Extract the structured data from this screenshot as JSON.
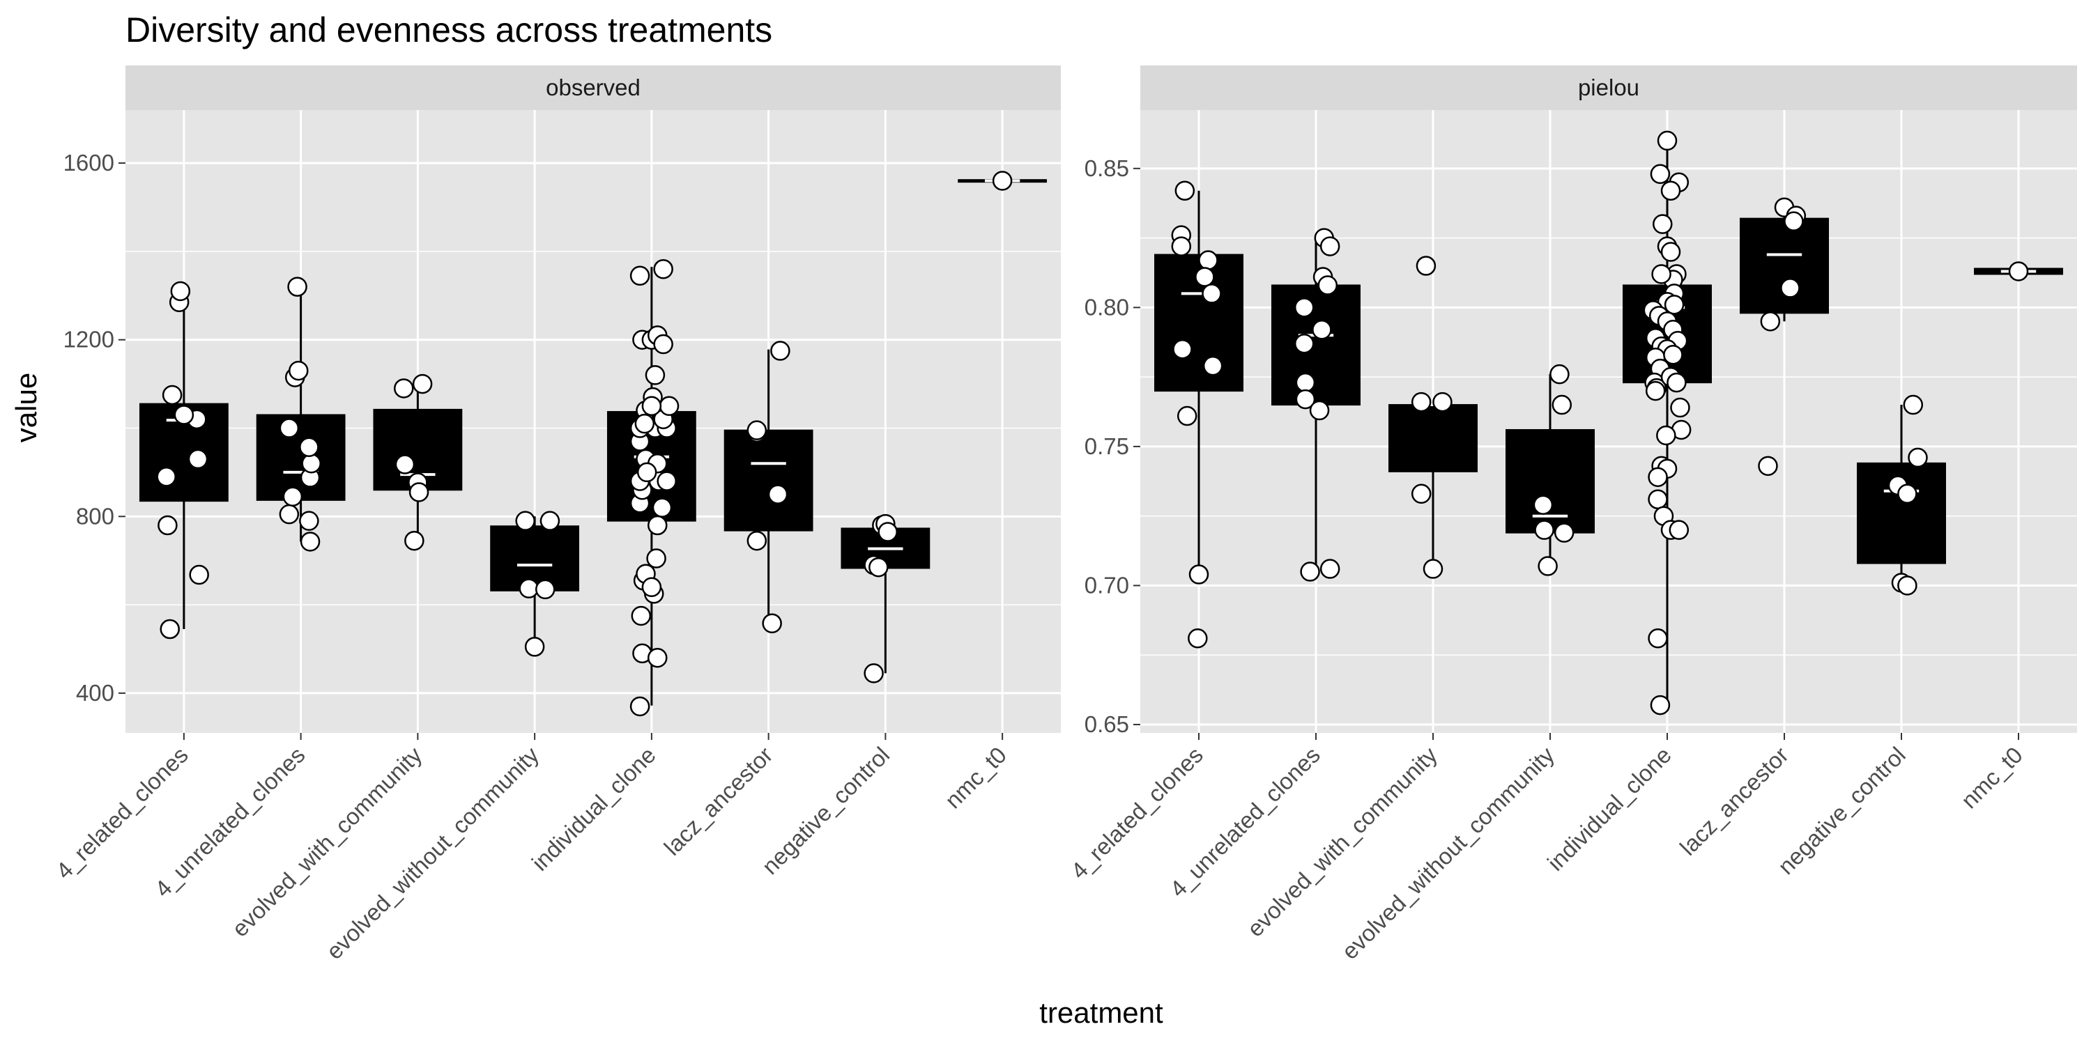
{
  "chart_data": {
    "type": "boxplot",
    "title": "Diversity and evenness across treatments",
    "xlabel": "treatment",
    "ylabel": "value",
    "categories": [
      "4_related_clones",
      "4_unrelated_clones",
      "evolved_with_community",
      "evolved_without_community",
      "individual_clone",
      "lacz_ancestor",
      "negative_control",
      "nmc_t0"
    ],
    "colors": {
      "panel_bg": "#e5e5e5",
      "strip_bg": "#d9d9d9",
      "grid": "#ffffff",
      "box_fill": "#000000",
      "median": "#ffffff",
      "point_fill": "#ffffff",
      "point_stroke": "#000000"
    },
    "grid": true,
    "legend": "none",
    "facets": [
      {
        "name": "observed",
        "ylim": [
          310,
          1720
        ],
        "yticks": [
          400,
          800,
          1200,
          1600
        ],
        "boxes": [
          {
            "q1": 835,
            "median": 1018,
            "q3": 1055,
            "whisker_low": 545,
            "whisker_high": 1285
          },
          {
            "q1": 837,
            "median": 900,
            "q3": 1030,
            "whisker_low": 743,
            "whisker_high": 1320
          },
          {
            "q1": 860,
            "median": 895,
            "q3": 1042,
            "whisker_low": 745,
            "whisker_high": 1100
          },
          {
            "q1": 632,
            "median": 690,
            "q3": 778,
            "whisker_low": 505,
            "whisker_high": 800
          },
          {
            "q1": 790,
            "median": 935,
            "q3": 1037,
            "whisker_low": 372,
            "whisker_high": 1365
          },
          {
            "q1": 768,
            "median": 920,
            "q3": 995,
            "whisker_low": 558,
            "whisker_high": 1178
          },
          {
            "q1": 683,
            "median": 727,
            "q3": 773,
            "whisker_low": 445,
            "whisker_high": 788
          },
          {
            "q1": 1558,
            "median": 1560,
            "q3": 1562,
            "whisker_low": 1558,
            "whisker_high": 1562
          }
        ],
        "points": [
          [
            [
              -0.12,
              545
            ],
            [
              -0.14,
              780
            ],
            [
              -0.15,
              890
            ],
            [
              0.12,
              930
            ],
            [
              0.11,
              1020
            ],
            [
              -0.1,
              1075
            ],
            [
              0.0,
              1030
            ],
            [
              -0.04,
              1285
            ],
            [
              -0.03,
              1310
            ],
            [
              0.13,
              668
            ]
          ],
          [
            [
              -0.1,
              805
            ],
            [
              -0.07,
              845
            ],
            [
              0.08,
              888
            ],
            [
              0.09,
              920
            ],
            [
              0.07,
              957
            ],
            [
              -0.1,
              1000
            ],
            [
              0.07,
              790
            ],
            [
              0.08,
              743
            ],
            [
              -0.05,
              1115
            ],
            [
              -0.02,
              1130
            ],
            [
              -0.03,
              1320
            ]
          ],
          [
            [
              -0.12,
              1090
            ],
            [
              0.04,
              1100
            ],
            [
              -0.11,
              918
            ],
            [
              0.0,
              877
            ],
            [
              0.01,
              855
            ],
            [
              -0.03,
              745
            ]
          ],
          [
            [
              -0.08,
              790
            ],
            [
              0.13,
              790
            ],
            [
              -0.05,
              637
            ],
            [
              0.09,
              635
            ],
            [
              0.0,
              505
            ]
          ],
          [
            [
              -0.1,
              370
            ],
            [
              -0.08,
              490
            ],
            [
              0.05,
              480
            ],
            [
              -0.09,
              575
            ],
            [
              -0.07,
              655
            ],
            [
              -0.05,
              670
            ],
            [
              0.02,
              625
            ],
            [
              0.0,
              640
            ],
            [
              0.04,
              705
            ],
            [
              0.05,
              780
            ],
            [
              -0.1,
              830
            ],
            [
              -0.08,
              860
            ],
            [
              0.06,
              880
            ],
            [
              0.13,
              880
            ],
            [
              -0.1,
              880
            ],
            [
              -0.05,
              930
            ],
            [
              0.05,
              920
            ],
            [
              -0.1,
              970
            ],
            [
              -0.1,
              1000
            ],
            [
              0.03,
              1000
            ],
            [
              -0.05,
              1040
            ],
            [
              0.13,
              1000
            ],
            [
              0.1,
              1020
            ],
            [
              0.15,
              1050
            ],
            [
              -0.08,
              1200
            ],
            [
              0.0,
              1200
            ],
            [
              0.05,
              1210
            ],
            [
              0.1,
              1190
            ],
            [
              0.03,
              1120
            ],
            [
              -0.1,
              1345
            ],
            [
              0.1,
              1360
            ],
            [
              0.01,
              1070
            ],
            [
              0.0,
              1050
            ],
            [
              -0.06,
              1010
            ],
            [
              -0.04,
              900
            ],
            [
              0.09,
              820
            ]
          ],
          [
            [
              -0.1,
              990
            ],
            [
              -0.1,
              995
            ],
            [
              0.1,
              1175
            ],
            [
              0.08,
              850
            ],
            [
              -0.1,
              745
            ],
            [
              0.03,
              558
            ]
          ],
          [
            [
              -0.1,
              690
            ],
            [
              -0.06,
              685
            ],
            [
              -0.03,
              780
            ],
            [
              0.0,
              783
            ],
            [
              0.02,
              765
            ],
            [
              -0.1,
              445
            ]
          ],
          [
            [
              0.0,
              1560
            ]
          ]
        ]
      },
      {
        "name": "pielou",
        "ylim": [
          0.647,
          0.871
        ],
        "yticks": [
          0.65,
          0.7,
          0.75,
          0.8,
          0.85
        ],
        "boxes": [
          {
            "q1": 0.77,
            "median": 0.805,
            "q3": 0.819,
            "whisker_low": 0.704,
            "whisker_high": 0.842
          },
          {
            "q1": 0.765,
            "median": 0.79,
            "q3": 0.808,
            "whisker_low": 0.705,
            "whisker_high": 0.825
          },
          {
            "q1": 0.741,
            "median": 0.765,
            "q3": 0.765,
            "whisker_low": 0.705,
            "whisker_high": 0.765
          },
          {
            "q1": 0.719,
            "median": 0.725,
            "q3": 0.756,
            "whisker_low": 0.706,
            "whisker_high": 0.776
          },
          {
            "q1": 0.773,
            "median": 0.8,
            "q3": 0.808,
            "whisker_low": 0.657,
            "whisker_high": 0.86
          },
          {
            "q1": 0.798,
            "median": 0.819,
            "q3": 0.832,
            "whisker_low": 0.795,
            "whisker_high": 0.836
          },
          {
            "q1": 0.708,
            "median": 0.734,
            "q3": 0.744,
            "whisker_low": 0.7,
            "whisker_high": 0.765
          },
          {
            "q1": 0.812,
            "median": 0.813,
            "q3": 0.814,
            "whisker_low": 0.812,
            "whisker_high": 0.814
          }
        ],
        "points": [
          [
            [
              -0.12,
              0.842
            ],
            [
              -0.15,
              0.826
            ],
            [
              -0.15,
              0.822
            ],
            [
              0.08,
              0.817
            ],
            [
              0.05,
              0.811
            ],
            [
              0.11,
              0.805
            ],
            [
              -0.14,
              0.785
            ],
            [
              0.12,
              0.779
            ],
            [
              -0.1,
              0.761
            ],
            [
              0.0,
              0.704
            ],
            [
              -0.01,
              0.681
            ]
          ],
          [
            [
              0.07,
              0.825
            ],
            [
              0.12,
              0.822
            ],
            [
              0.06,
              0.811
            ],
            [
              0.1,
              0.808
            ],
            [
              -0.1,
              0.8
            ],
            [
              0.05,
              0.792
            ],
            [
              -0.1,
              0.787
            ],
            [
              -0.09,
              0.773
            ],
            [
              -0.09,
              0.767
            ],
            [
              0.03,
              0.763
            ],
            [
              -0.05,
              0.705
            ],
            [
              0.12,
              0.706
            ]
          ],
          [
            [
              -0.06,
              0.815
            ],
            [
              -0.1,
              0.766
            ],
            [
              0.08,
              0.766
            ],
            [
              -0.1,
              0.733
            ],
            [
              0.0,
              0.706
            ]
          ],
          [
            [
              0.08,
              0.776
            ],
            [
              0.1,
              0.765
            ],
            [
              -0.06,
              0.729
            ],
            [
              -0.05,
              0.72
            ],
            [
              0.12,
              0.719
            ],
            [
              -0.02,
              0.707
            ]
          ],
          [
            [
              0.0,
              0.86
            ],
            [
              -0.06,
              0.848
            ],
            [
              0.1,
              0.845
            ],
            [
              0.03,
              0.842
            ],
            [
              -0.04,
              0.83
            ],
            [
              0.0,
              0.822
            ],
            [
              0.03,
              0.82
            ],
            [
              0.08,
              0.812
            ],
            [
              0.05,
              0.81
            ],
            [
              -0.05,
              0.812
            ],
            [
              0.06,
              0.805
            ],
            [
              -0.05,
              0.8
            ],
            [
              0.0,
              0.802
            ],
            [
              0.06,
              0.801
            ],
            [
              -0.12,
              0.799
            ],
            [
              -0.07,
              0.797
            ],
            [
              0.0,
              0.795
            ],
            [
              0.05,
              0.792
            ],
            [
              -0.1,
              0.789
            ],
            [
              -0.05,
              0.786
            ],
            [
              0.09,
              0.788
            ],
            [
              0.0,
              0.785
            ],
            [
              -0.1,
              0.782
            ],
            [
              0.05,
              0.783
            ],
            [
              -0.06,
              0.778
            ],
            [
              -0.11,
              0.773
            ],
            [
              -0.09,
              0.771
            ],
            [
              0.03,
              0.775
            ],
            [
              0.08,
              0.773
            ],
            [
              -0.1,
              0.77
            ],
            [
              0.11,
              0.764
            ],
            [
              0.12,
              0.756
            ],
            [
              -0.01,
              0.754
            ],
            [
              -0.05,
              0.743
            ],
            [
              0.0,
              0.742
            ],
            [
              -0.08,
              0.739
            ],
            [
              -0.08,
              0.731
            ],
            [
              -0.03,
              0.725
            ],
            [
              0.03,
              0.72
            ],
            [
              0.1,
              0.72
            ],
            [
              -0.08,
              0.681
            ],
            [
              -0.06,
              0.657
            ]
          ],
          [
            [
              0.0,
              0.836
            ],
            [
              0.1,
              0.833
            ],
            [
              0.08,
              0.831
            ],
            [
              0.05,
              0.807
            ],
            [
              -0.12,
              0.795
            ],
            [
              -0.14,
              0.743
            ]
          ],
          [
            [
              0.1,
              0.765
            ],
            [
              0.14,
              0.746
            ],
            [
              -0.03,
              0.736
            ],
            [
              0.05,
              0.733
            ],
            [
              0.0,
              0.701
            ],
            [
              0.05,
              0.7
            ]
          ],
          [
            [
              0.0,
              0.813
            ]
          ]
        ]
      }
    ]
  }
}
